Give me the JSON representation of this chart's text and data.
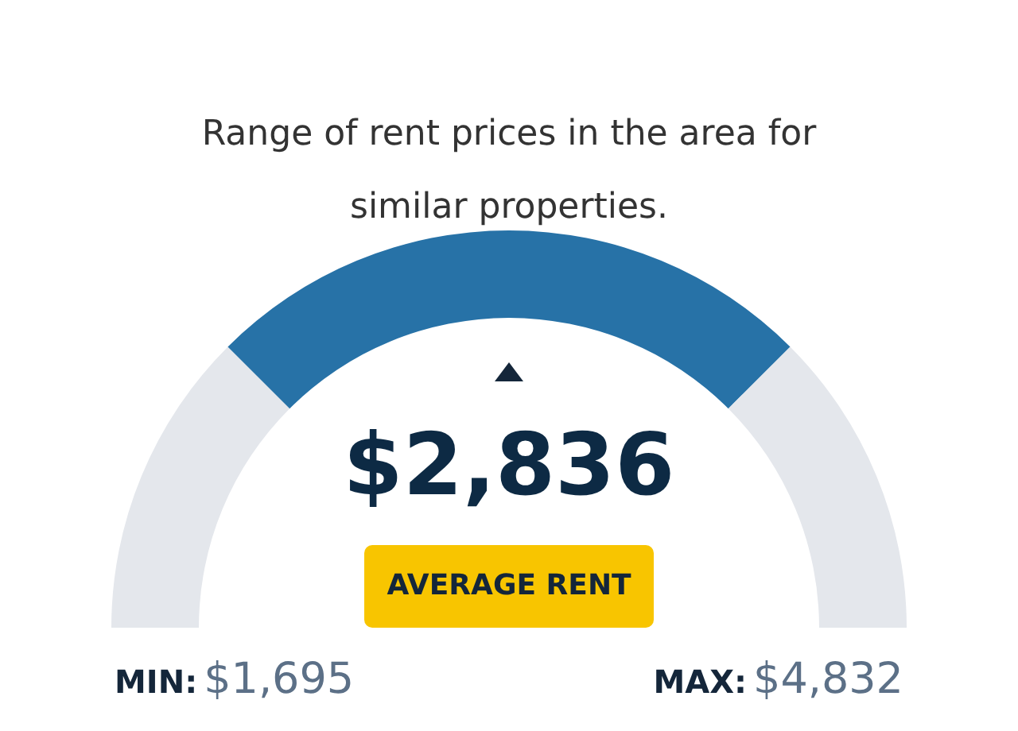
{
  "chart_data": {
    "type": "donut",
    "subtitle": "Range of rent prices in the area for similar properties.",
    "categories": [
      null,
      null,
      null
    ],
    "values": [
      25,
      50,
      25
    ],
    "colors": [
      "#e4e7ec",
      "#2772a7",
      "#e4e7ec"
    ],
    "annotations": [
      "$2,836",
      "AVERAGE RENT",
      "MIN:",
      "$1,695",
      "MAX:",
      "$4,832"
    ]
  }
}
